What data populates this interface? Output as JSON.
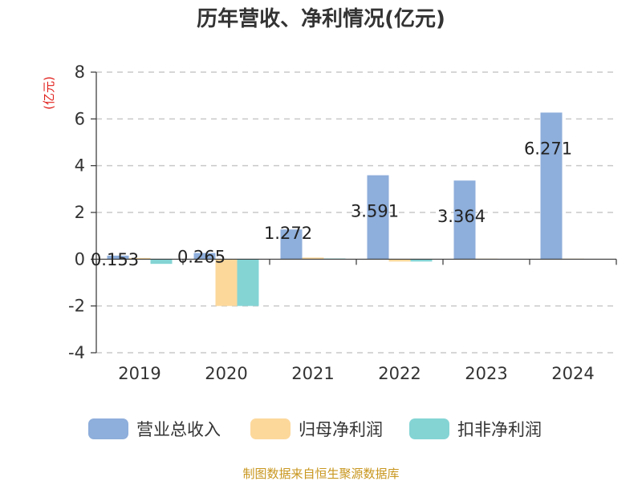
{
  "chart_data": {
    "type": "bar",
    "title": "历年营收、净利情况(亿元)",
    "ylabel": "(亿元)",
    "ylim": [
      -4,
      8
    ],
    "yticks": [
      8,
      6,
      4,
      2,
      0,
      -2,
      -4
    ],
    "grid": true,
    "legend_position": "bottom",
    "categories": [
      "2019",
      "2020",
      "2021",
      "2022",
      "2023",
      "2024"
    ],
    "series": [
      {
        "name": "营业总收入",
        "color": "#8eaedb",
        "values": [
          0.153,
          0.265,
          1.272,
          3.591,
          3.364,
          6.271
        ],
        "labels": [
          "0.153",
          "0.265",
          "1.272",
          "3.591",
          "3.364",
          "6.271"
        ]
      },
      {
        "name": "归母净利润",
        "color": "#fcd89b",
        "values": [
          0.05,
          -2.0,
          0.07,
          -0.1,
          0.02,
          0.02
        ]
      },
      {
        "name": "扣非净利润",
        "color": "#84d4d4",
        "values": [
          -0.2,
          -2.0,
          0.03,
          -0.1,
          0.01,
          0.01
        ]
      }
    ]
  },
  "source": "制图数据来自恒生聚源数据库"
}
